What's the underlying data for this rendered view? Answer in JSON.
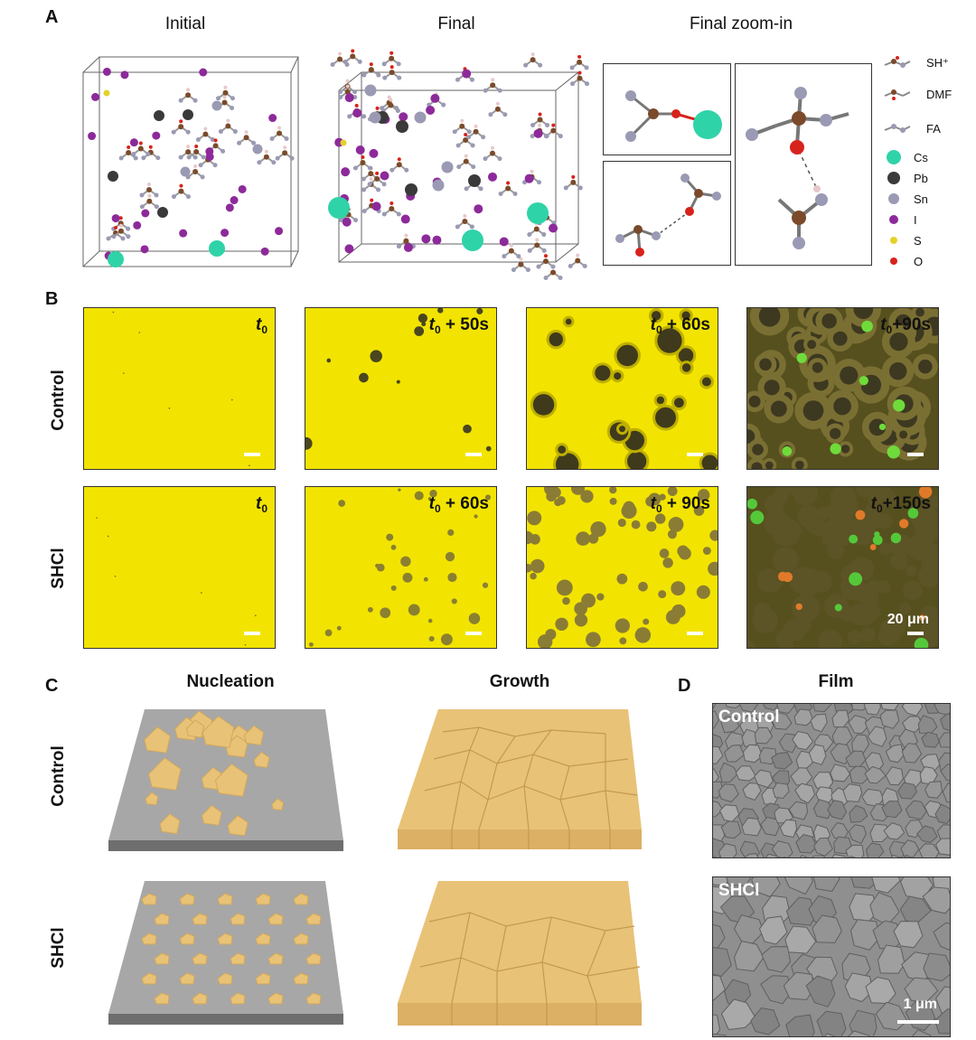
{
  "panel_a": {
    "label": "A",
    "headers": [
      "Initial",
      "Final",
      "Final zoom-in"
    ],
    "legend": [
      {
        "label": "SH⁺",
        "icon": "molecule-icon"
      },
      {
        "label": "DMF",
        "icon": "molecule-icon"
      },
      {
        "label": "FA",
        "icon": "molecule-icon"
      },
      {
        "label": "Cs",
        "color": "#2fd3a8"
      },
      {
        "label": "Pb",
        "color": "#3a3a3a"
      },
      {
        "label": "Sn",
        "color": "#9a9ab4"
      },
      {
        "label": "I",
        "color": "#8d2a9a"
      },
      {
        "label": "S",
        "color": "#e4d12a"
      },
      {
        "label": "O",
        "color": "#d8221c"
      }
    ]
  },
  "panel_b": {
    "label": "B",
    "rows": [
      {
        "name": "Control",
        "frames": [
          {
            "t": "t",
            "sub": "0",
            "suffix": ""
          },
          {
            "t": "t",
            "sub": "0",
            "suffix": " + 50s"
          },
          {
            "t": "t",
            "sub": "0",
            "suffix": " + 60s"
          },
          {
            "t": "t",
            "sub": "0",
            "suffix": "+90s"
          }
        ]
      },
      {
        "name": "SHCl",
        "frames": [
          {
            "t": "t",
            "sub": "0",
            "suffix": ""
          },
          {
            "t": "t",
            "sub": "0",
            "suffix": " + 60s"
          },
          {
            "t": "t",
            "sub": "0",
            "suffix": " + 90s"
          },
          {
            "t": "t",
            "sub": "0",
            "suffix": "+150s"
          }
        ]
      }
    ],
    "scale_bar": "20 μm"
  },
  "panel_c": {
    "label": "C",
    "col_nucleation": "Nucleation",
    "col_growth": "Growth",
    "row_control": "Control",
    "row_shcl": "SHCl"
  },
  "panel_d": {
    "label": "D",
    "title": "Film",
    "top_label": "Control",
    "bottom_label": "SHCl",
    "scale_bar": "1 μm"
  },
  "colors": {
    "micro_yellow": "#f2e400",
    "crystal_gold": "#e8c277",
    "substrate_grey": "#a7a7a7",
    "cs_teal": "#2fd3a8",
    "iodine_purple": "#8d2a9a"
  }
}
